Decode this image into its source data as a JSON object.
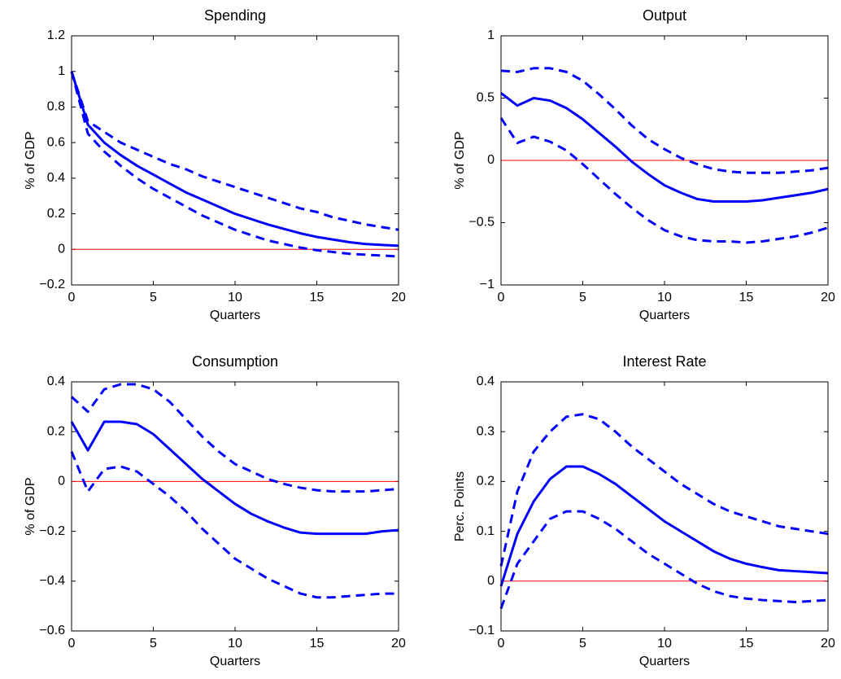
{
  "chart_data": [
    {
      "type": "line",
      "title": "Spending",
      "xlabel": "Quarters",
      "ylabel": "% of GDP",
      "x": [
        0,
        1,
        2,
        3,
        4,
        5,
        6,
        7,
        8,
        9,
        10,
        11,
        12,
        13,
        14,
        15,
        16,
        17,
        18,
        19,
        20
      ],
      "xlim": [
        0,
        20
      ],
      "xticks": [
        0,
        5,
        10,
        15,
        20
      ],
      "ylim": [
        -0.2,
        1.2
      ],
      "yticks": [
        {
          "value": -0.2,
          "label": "−0.2"
        },
        0,
        0.2,
        0.4,
        0.6,
        0.8,
        1,
        1.2
      ],
      "reference_line": {
        "value": 0,
        "color": "#ff0000"
      },
      "series": [
        {
          "color": "#0000ff",
          "line_style": "solid",
          "values": [
            1.0,
            0.7,
            0.6,
            0.53,
            0.47,
            0.42,
            0.37,
            0.32,
            0.28,
            0.24,
            0.2,
            0.17,
            0.14,
            0.115,
            0.09,
            0.07,
            0.055,
            0.04,
            0.03,
            0.025,
            0.02
          ]
        },
        {
          "color": "#0000ff",
          "line_style": "dashed",
          "values": [
            1.0,
            0.72,
            0.66,
            0.6,
            0.56,
            0.52,
            0.48,
            0.45,
            0.41,
            0.38,
            0.35,
            0.32,
            0.29,
            0.26,
            0.23,
            0.21,
            0.18,
            0.16,
            0.14,
            0.125,
            0.11
          ]
        },
        {
          "color": "#0000ff",
          "line_style": "dashed",
          "values": [
            1.0,
            0.65,
            0.55,
            0.47,
            0.4,
            0.34,
            0.29,
            0.24,
            0.19,
            0.15,
            0.11,
            0.08,
            0.05,
            0.03,
            0.01,
            -0.005,
            -0.015,
            -0.025,
            -0.03,
            -0.035,
            -0.04
          ]
        }
      ]
    },
    {
      "type": "line",
      "title": "Output",
      "xlabel": "Quarters",
      "ylabel": "% of GDP",
      "x": [
        0,
        1,
        2,
        3,
        4,
        5,
        6,
        7,
        8,
        9,
        10,
        11,
        12,
        13,
        14,
        15,
        16,
        17,
        18,
        19,
        20
      ],
      "xlim": [
        0,
        20
      ],
      "xticks": [
        0,
        5,
        10,
        15,
        20
      ],
      "ylim": [
        -1,
        1
      ],
      "yticks": [
        {
          "value": -1,
          "label": "−1"
        },
        {
          "value": -0.5,
          "label": "−0.5"
        },
        0,
        0.5,
        1
      ],
      "reference_line": {
        "value": 0,
        "color": "#ff0000"
      },
      "series": [
        {
          "color": "#0000ff",
          "line_style": "solid",
          "values": [
            0.54,
            0.44,
            0.5,
            0.48,
            0.42,
            0.33,
            0.22,
            0.11,
            -0.01,
            -0.11,
            -0.2,
            -0.26,
            -0.31,
            -0.33,
            -0.33,
            -0.33,
            -0.32,
            -0.3,
            -0.28,
            -0.26,
            -0.23
          ]
        },
        {
          "color": "#0000ff",
          "line_style": "dashed",
          "values": [
            0.72,
            0.71,
            0.74,
            0.74,
            0.71,
            0.64,
            0.53,
            0.41,
            0.28,
            0.17,
            0.09,
            0.02,
            -0.03,
            -0.07,
            -0.09,
            -0.1,
            -0.1,
            -0.1,
            -0.09,
            -0.08,
            -0.06
          ]
        },
        {
          "color": "#0000ff",
          "line_style": "dashed",
          "values": [
            0.34,
            0.14,
            0.19,
            0.15,
            0.08,
            -0.03,
            -0.15,
            -0.27,
            -0.38,
            -0.48,
            -0.56,
            -0.61,
            -0.64,
            -0.65,
            -0.65,
            -0.66,
            -0.65,
            -0.63,
            -0.61,
            -0.58,
            -0.54
          ]
        }
      ]
    },
    {
      "type": "line",
      "title": "Consumption",
      "xlabel": "Quarters",
      "ylabel": "% of GDP",
      "x": [
        0,
        1,
        2,
        3,
        4,
        5,
        6,
        7,
        8,
        9,
        10,
        11,
        12,
        13,
        14,
        15,
        16,
        17,
        18,
        19,
        20
      ],
      "xlim": [
        0,
        20
      ],
      "xticks": [
        0,
        5,
        10,
        15,
        20
      ],
      "ylim": [
        -0.6,
        0.4
      ],
      "yticks": [
        {
          "value": -0.6,
          "label": "−0.6"
        },
        {
          "value": -0.4,
          "label": "−0.4"
        },
        {
          "value": -0.2,
          "label": "−0.2"
        },
        0,
        0.2,
        0.4
      ],
      "reference_line": {
        "value": 0,
        "color": "#ff0000"
      },
      "series": [
        {
          "color": "#0000ff",
          "line_style": "solid",
          "values": [
            0.24,
            0.125,
            0.24,
            0.24,
            0.23,
            0.19,
            0.13,
            0.07,
            0.01,
            -0.04,
            -0.09,
            -0.13,
            -0.16,
            -0.185,
            -0.205,
            -0.21,
            -0.21,
            -0.21,
            -0.21,
            -0.2,
            -0.195
          ]
        },
        {
          "color": "#0000ff",
          "line_style": "dashed",
          "values": [
            0.34,
            0.28,
            0.37,
            0.39,
            0.39,
            0.37,
            0.32,
            0.25,
            0.18,
            0.12,
            0.07,
            0.04,
            0.01,
            -0.01,
            -0.025,
            -0.035,
            -0.04,
            -0.04,
            -0.04,
            -0.035,
            -0.03
          ]
        },
        {
          "color": "#0000ff",
          "line_style": "dashed",
          "values": [
            0.12,
            -0.04,
            0.05,
            0.06,
            0.04,
            -0.01,
            -0.06,
            -0.12,
            -0.19,
            -0.25,
            -0.31,
            -0.35,
            -0.39,
            -0.42,
            -0.45,
            -0.465,
            -0.465,
            -0.46,
            -0.455,
            -0.45,
            -0.45
          ]
        }
      ]
    },
    {
      "type": "line",
      "title": "Interest Rate",
      "xlabel": "Quarters",
      "ylabel": "Perc. Points",
      "x": [
        0,
        1,
        2,
        3,
        4,
        5,
        6,
        7,
        8,
        9,
        10,
        11,
        12,
        13,
        14,
        15,
        16,
        17,
        18,
        19,
        20
      ],
      "xlim": [
        0,
        20
      ],
      "xticks": [
        0,
        5,
        10,
        15,
        20
      ],
      "ylim": [
        -0.1,
        0.4
      ],
      "yticks": [
        {
          "value": -0.1,
          "label": "−0.1"
        },
        0,
        0.1,
        0.2,
        0.3,
        0.4
      ],
      "reference_line": {
        "value": 0,
        "color": "#ff0000"
      },
      "series": [
        {
          "color": "#0000ff",
          "line_style": "solid",
          "values": [
            -0.01,
            0.095,
            0.16,
            0.205,
            0.23,
            0.23,
            0.215,
            0.195,
            0.17,
            0.145,
            0.12,
            0.1,
            0.08,
            0.06,
            0.045,
            0.035,
            0.028,
            0.022,
            0.02,
            0.018,
            0.016
          ]
        },
        {
          "color": "#0000ff",
          "line_style": "dashed",
          "values": [
            0.03,
            0.18,
            0.26,
            0.3,
            0.33,
            0.335,
            0.325,
            0.3,
            0.27,
            0.245,
            0.22,
            0.195,
            0.175,
            0.155,
            0.14,
            0.13,
            0.12,
            0.11,
            0.105,
            0.1,
            0.095
          ]
        },
        {
          "color": "#0000ff",
          "line_style": "dashed",
          "values": [
            -0.055,
            0.035,
            0.08,
            0.125,
            0.14,
            0.14,
            0.125,
            0.105,
            0.08,
            0.055,
            0.035,
            0.015,
            -0.005,
            -0.02,
            -0.03,
            -0.035,
            -0.038,
            -0.04,
            -0.042,
            -0.04,
            -0.038
          ]
        }
      ]
    }
  ]
}
